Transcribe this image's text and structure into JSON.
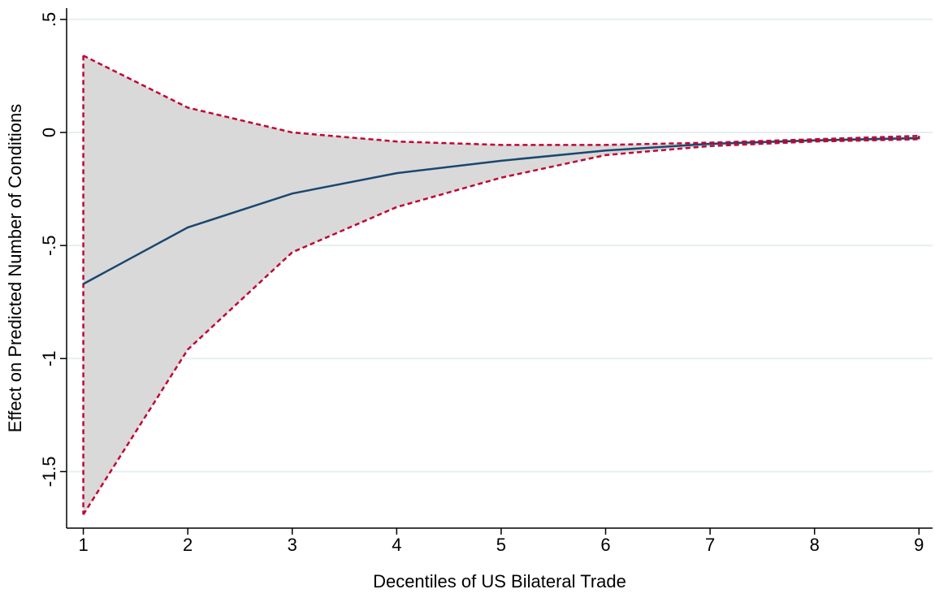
{
  "chart_data": {
    "type": "line_ci",
    "x_label": "Decentiles of US Bilateral Trade",
    "y_label": "Effect on Predicted Number of Conditions",
    "x": [
      1,
      2,
      3,
      4,
      5,
      6,
      7,
      8,
      9
    ],
    "values": [
      -0.67,
      -0.42,
      -0.27,
      -0.18,
      -0.125,
      -0.08,
      -0.05,
      -0.035,
      -0.025
    ],
    "ci_upper": [
      0.34,
      0.11,
      0.0,
      -0.04,
      -0.055,
      -0.055,
      -0.045,
      -0.03,
      -0.015
    ],
    "ci_lower": [
      -1.69,
      -0.96,
      -0.53,
      -0.33,
      -0.2,
      -0.1,
      -0.06,
      -0.04,
      -0.03
    ],
    "color": "#1a476f",
    "ci_color": "#c10534",
    "ci_fill": "#d9d9d9",
    "xlim": [
      0.84,
      9.13
    ],
    "xticks": [
      1,
      2,
      3,
      4,
      5,
      6,
      7,
      8,
      9
    ],
    "ylim": [
      -1.75,
      0.55
    ],
    "yticks": [
      {
        "value": -1.5,
        "label": "-1.5"
      },
      -1,
      {
        "value": -0.5,
        "label": "-.5"
      },
      0,
      {
        "value": 0.5,
        "label": ".5"
      }
    ],
    "grid": true
  }
}
